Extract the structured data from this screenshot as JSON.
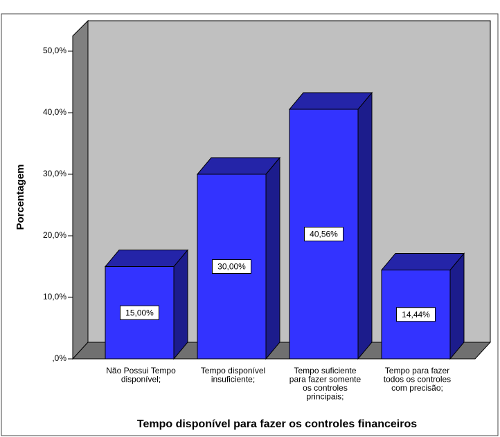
{
  "chart_data": {
    "type": "bar3d",
    "y_label": "Porcentagem",
    "x_label": "Tempo disponível para fazer os controles financeiros",
    "categories": [
      [
        "Não Possui Tempo",
        "disponível;"
      ],
      [
        "Tempo disponível",
        "insuficiente;"
      ],
      [
        "Tempo suficiente",
        "para fazer somente",
        "os controles",
        "principais;"
      ],
      [
        "Tempo para fazer",
        "todos os controles",
        "com precisão;"
      ]
    ],
    "values": [
      15.0,
      30.0,
      40.56,
      14.44
    ],
    "value_labels": [
      "15,00%",
      "30,00%",
      "40,56%",
      "14,44%"
    ],
    "color": "#3333ff",
    "ylim": [
      0,
      50
    ],
    "yticks": [
      {
        "value": 0,
        "label": ",0%"
      },
      {
        "value": 10,
        "label": "10,0%"
      },
      {
        "value": 20,
        "label": "20,0%"
      },
      {
        "value": 30,
        "label": "30,0%"
      },
      {
        "value": 40,
        "label": "40,0%"
      },
      {
        "value": 50,
        "label": "50,0%"
      }
    ],
    "grid": false
  }
}
